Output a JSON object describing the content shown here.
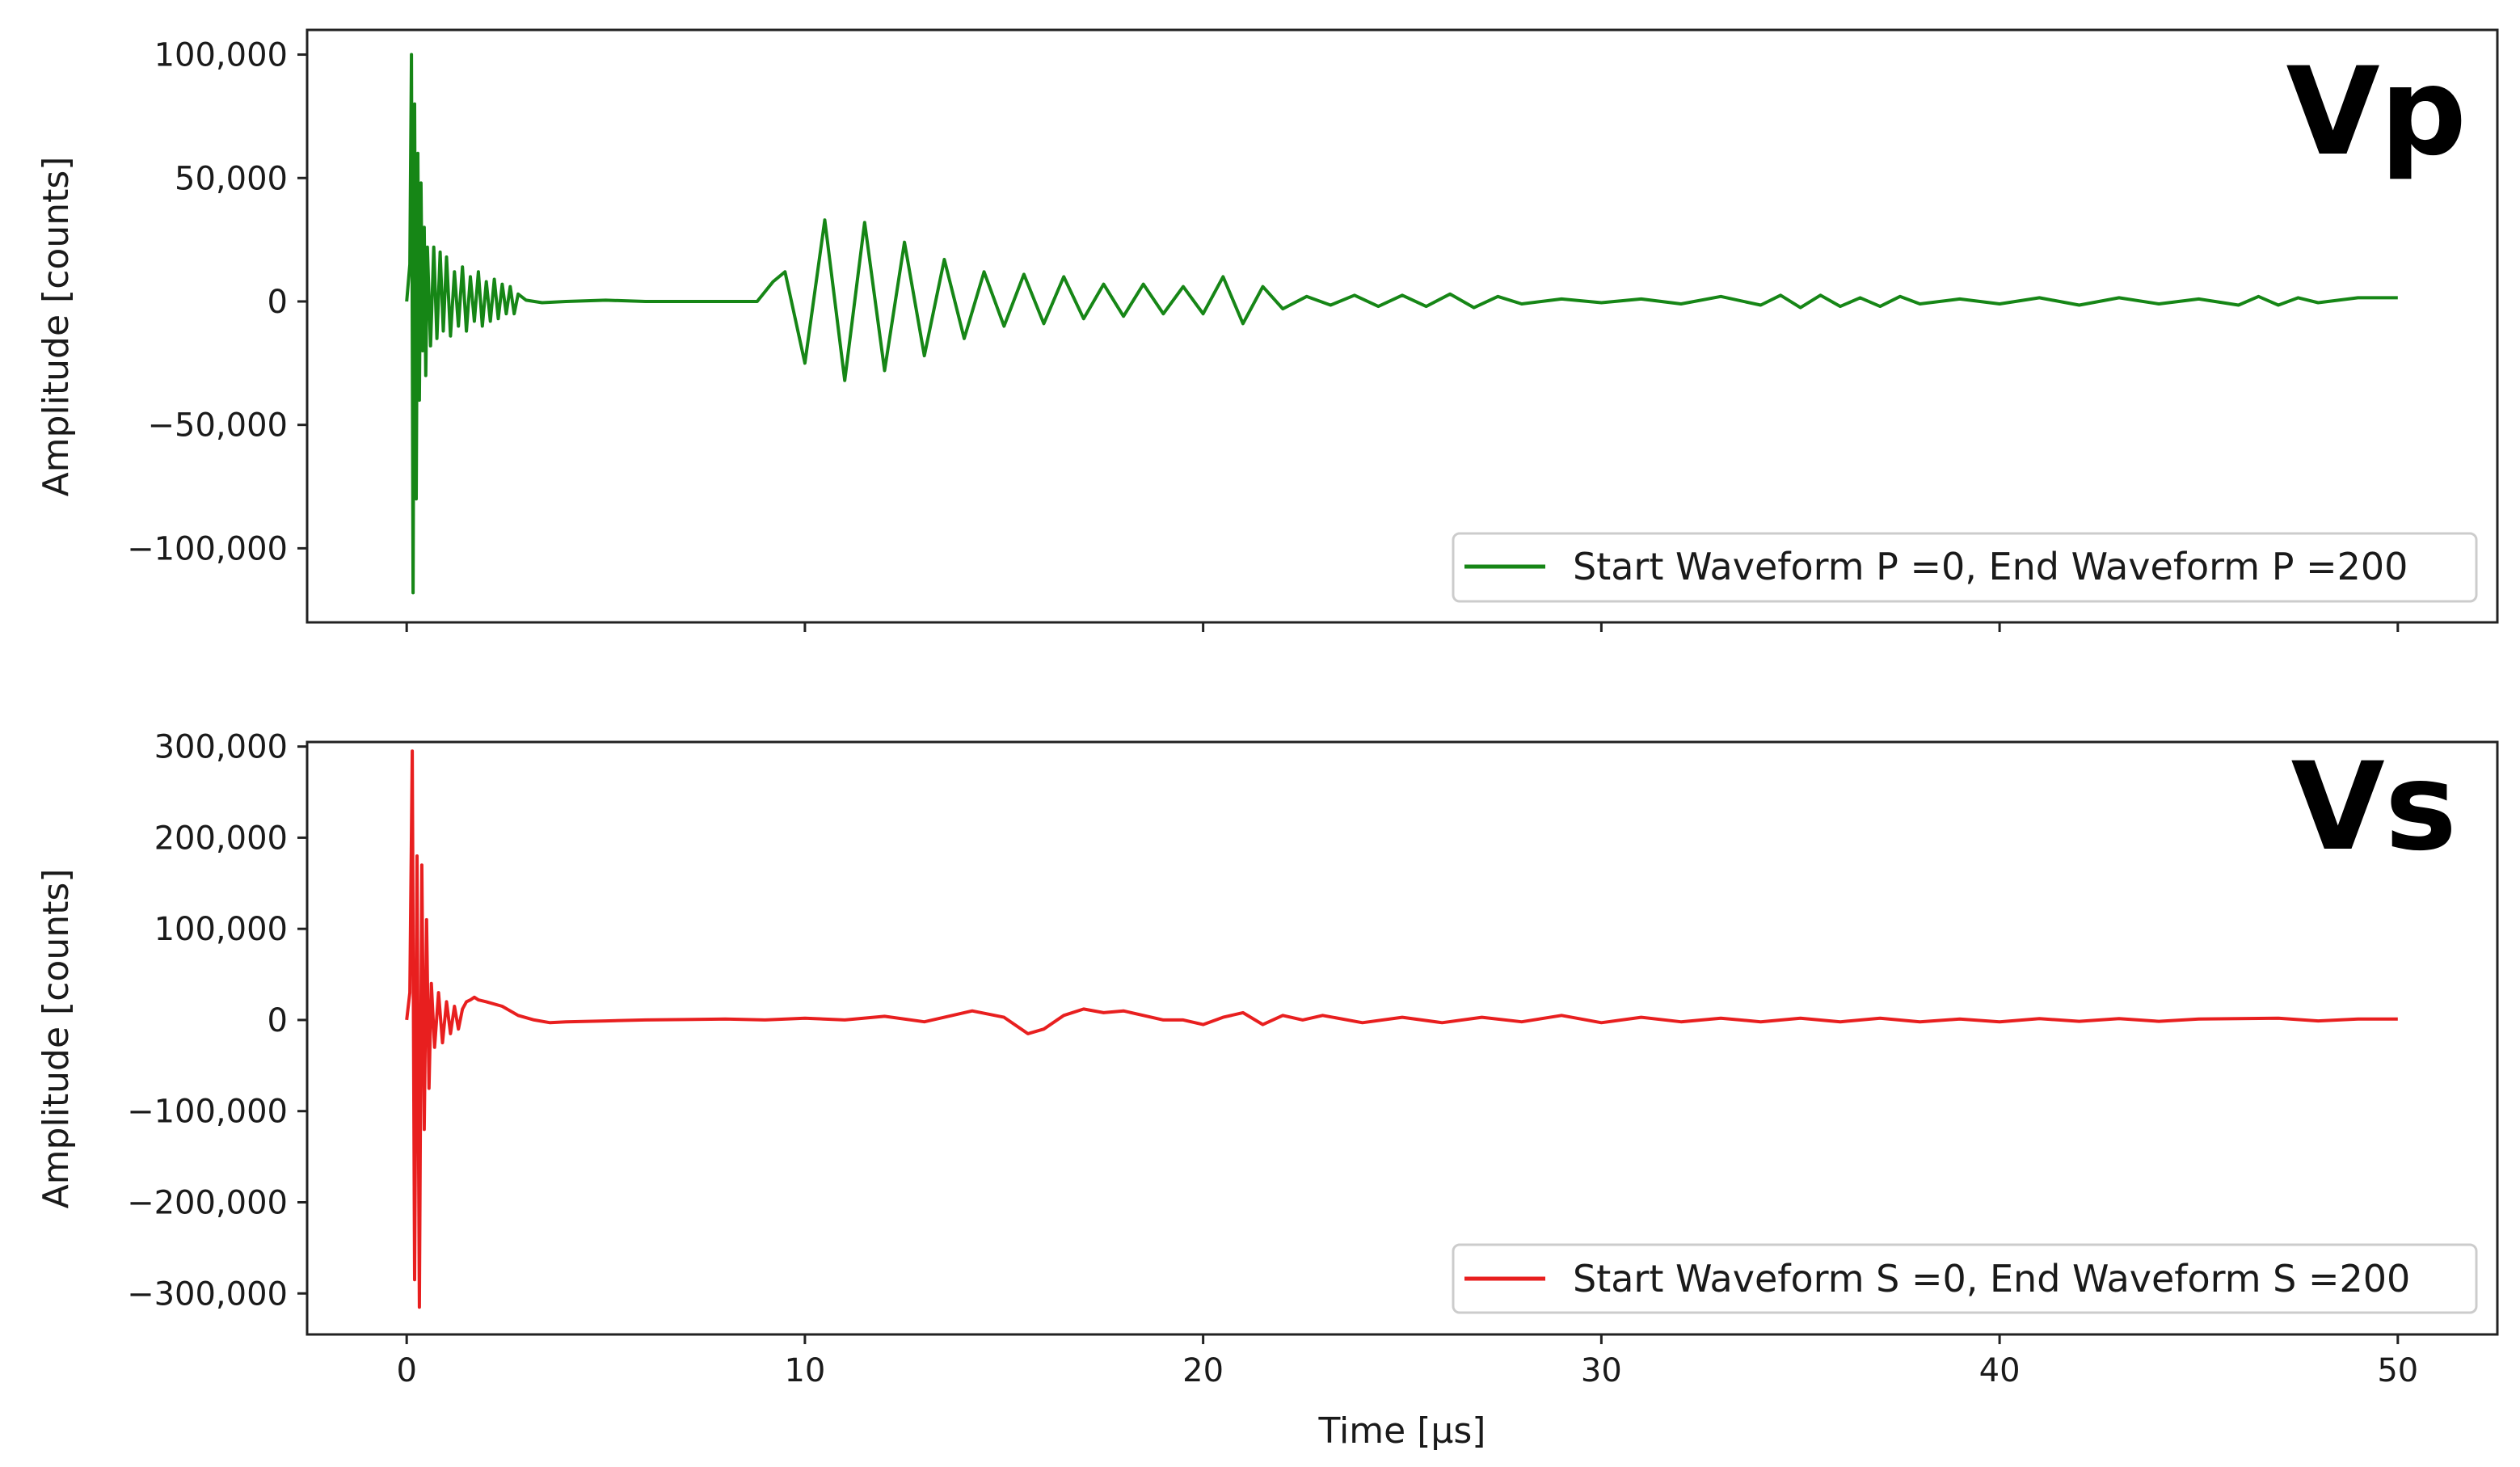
{
  "chart_data": [
    {
      "type": "line",
      "panel_label": "Vp",
      "ylabel": "Amplitude [counts]",
      "xlabel": "",
      "xlim": [
        -2.5,
        52.5
      ],
      "ylim": [
        -130000,
        110000
      ],
      "xticks": [
        0,
        10,
        20,
        30,
        40,
        50
      ],
      "xtick_labels": [
        "",
        "",
        "",
        "",
        "",
        ""
      ],
      "yticks": [
        100000,
        50000,
        0,
        -50000,
        -100000
      ],
      "ytick_labels": [
        "100,000",
        "50,000",
        "0",
        "−50,000",
        "−100,000"
      ],
      "legend": "lower-right",
      "color": "#168616",
      "series": [
        {
          "name": "Start Waveform P =0, End Waveform P =200",
          "x": [
            0,
            0.08,
            0.12,
            0.16,
            0.2,
            0.24,
            0.28,
            0.32,
            0.36,
            0.4,
            0.44,
            0.48,
            0.52,
            0.6,
            0.68,
            0.76,
            0.84,
            0.92,
            1.0,
            1.1,
            1.2,
            1.3,
            1.4,
            1.5,
            1.6,
            1.7,
            1.8,
            1.9,
            2.0,
            2.1,
            2.2,
            2.3,
            2.4,
            2.5,
            2.6,
            2.7,
            2.8,
            3.0,
            3.4,
            4.0,
            5.0,
            6.0,
            7.0,
            8.0,
            8.8,
            9.2,
            9.5,
            10.0,
            10.5,
            11.0,
            11.5,
            12.0,
            12.5,
            13.0,
            13.5,
            14.0,
            14.5,
            15.0,
            15.5,
            16.0,
            16.5,
            17.0,
            17.5,
            18.0,
            18.5,
            19.0,
            19.5,
            20.0,
            20.5,
            21.0,
            21.5,
            22.0,
            22.6,
            23.2,
            23.8,
            24.4,
            25.0,
            25.6,
            26.2,
            26.8,
            27.4,
            28.0,
            29.0,
            30.0,
            31.0,
            32.0,
            33.0,
            34.0,
            34.5,
            35.0,
            35.5,
            36.0,
            36.5,
            37.0,
            37.5,
            38.0,
            39.0,
            40.0,
            41.0,
            42.0,
            43.0,
            44.0,
            45.0,
            46.0,
            46.5,
            47.0,
            47.5,
            48.0,
            49.0,
            50.0
          ],
          "y": [
            0,
            15000,
            100000,
            -118000,
            80000,
            -80000,
            60000,
            -40000,
            48000,
            -20000,
            30000,
            -30000,
            22000,
            -18000,
            22000,
            -15000,
            20000,
            -12000,
            18000,
            -14000,
            12000,
            -10000,
            14000,
            -12000,
            10000,
            -8000,
            12000,
            -10000,
            8000,
            -8000,
            9000,
            -7000,
            7000,
            -5000,
            6000,
            -5000,
            3000,
            500,
            -500,
            0,
            500,
            0,
            0,
            0,
            0,
            8000,
            12000,
            -25000,
            33000,
            -32000,
            32000,
            -28000,
            24000,
            -22000,
            17000,
            -15000,
            12000,
            -10000,
            11000,
            -9000,
            10000,
            -7000,
            7000,
            -6000,
            7000,
            -5000,
            6000,
            -5000,
            10000,
            -9000,
            6000,
            -3000,
            2000,
            -1500,
            2500,
            -2000,
            2500,
            -2000,
            3000,
            -2500,
            2000,
            -1000,
            1000,
            -500,
            1000,
            -1000,
            2000,
            -1500,
            2500,
            -2500,
            2500,
            -2000,
            1500,
            -2000,
            2000,
            -1000,
            1000,
            -1000,
            1500,
            -1500,
            1500,
            -1000,
            1000,
            -1500,
            2000,
            -1500,
            1500,
            -500,
            1500,
            1500
          ]
        }
      ]
    },
    {
      "type": "line",
      "panel_label": "Vs",
      "ylabel": "Amplitude [counts]",
      "xlabel": "Time [μs]",
      "xlim": [
        -2.5,
        52.5
      ],
      "ylim": [
        -345000,
        305000
      ],
      "xticks": [
        0,
        10,
        20,
        30,
        40,
        50
      ],
      "xtick_labels": [
        "0",
        "10",
        "20",
        "30",
        "40",
        "50"
      ],
      "yticks": [
        300000,
        200000,
        100000,
        0,
        -100000,
        -200000,
        -300000
      ],
      "ytick_labels": [
        "300,000",
        "200,000",
        "100,000",
        "0",
        "−100,000",
        "−200,000",
        "−300,000"
      ],
      "legend": "lower-right",
      "color": "#e81f1f",
      "series": [
        {
          "name": "Start Waveform S =0, End Waveform S =200",
          "x": [
            0,
            0.08,
            0.14,
            0.2,
            0.26,
            0.32,
            0.38,
            0.44,
            0.5,
            0.56,
            0.62,
            0.7,
            0.8,
            0.9,
            1.0,
            1.1,
            1.2,
            1.3,
            1.4,
            1.5,
            1.6,
            1.7,
            1.8,
            2.0,
            2.4,
            2.8,
            3.2,
            3.6,
            4.0,
            5.0,
            6.0,
            7.0,
            8.0,
            9.0,
            10.0,
            11.0,
            12.0,
            13.0,
            13.5,
            14.2,
            15.0,
            15.6,
            16.0,
            16.5,
            17.0,
            17.5,
            18.0,
            18.5,
            19.0,
            19.5,
            20.0,
            20.5,
            21.0,
            21.5,
            22.0,
            22.5,
            23.0,
            24.0,
            25.0,
            26.0,
            27.0,
            28.0,
            29.0,
            30.0,
            31.0,
            32.0,
            33.0,
            34.0,
            35.0,
            36.0,
            37.0,
            38.0,
            39.0,
            40.0,
            41.0,
            42.0,
            43.0,
            44.0,
            45.0,
            46.0,
            47.0,
            48.0,
            49.0,
            50.0
          ],
          "y": [
            0,
            30000,
            295000,
            -285000,
            180000,
            -315000,
            170000,
            -120000,
            110000,
            -75000,
            40000,
            -30000,
            30000,
            -25000,
            20000,
            -15000,
            15000,
            -10000,
            12000,
            20000,
            22000,
            25000,
            22000,
            20000,
            15000,
            5000,
            0,
            -3000,
            -2000,
            -1000,
            0,
            500,
            1000,
            0,
            2000,
            0,
            4000,
            -2000,
            3000,
            10000,
            3000,
            -15000,
            -10000,
            5000,
            12000,
            8000,
            10000,
            5000,
            0,
            0,
            -5000,
            3000,
            8000,
            -5000,
            5000,
            0,
            5000,
            -3000,
            3000,
            -3000,
            3000,
            -2000,
            5000,
            -3000,
            3000,
            -2000,
            2000,
            -2000,
            2000,
            -2000,
            2000,
            -2000,
            1000,
            -2000,
            1500,
            -1500,
            1500,
            -1500,
            1000,
            1500,
            2000,
            -1000,
            1000,
            1000
          ]
        }
      ]
    }
  ]
}
